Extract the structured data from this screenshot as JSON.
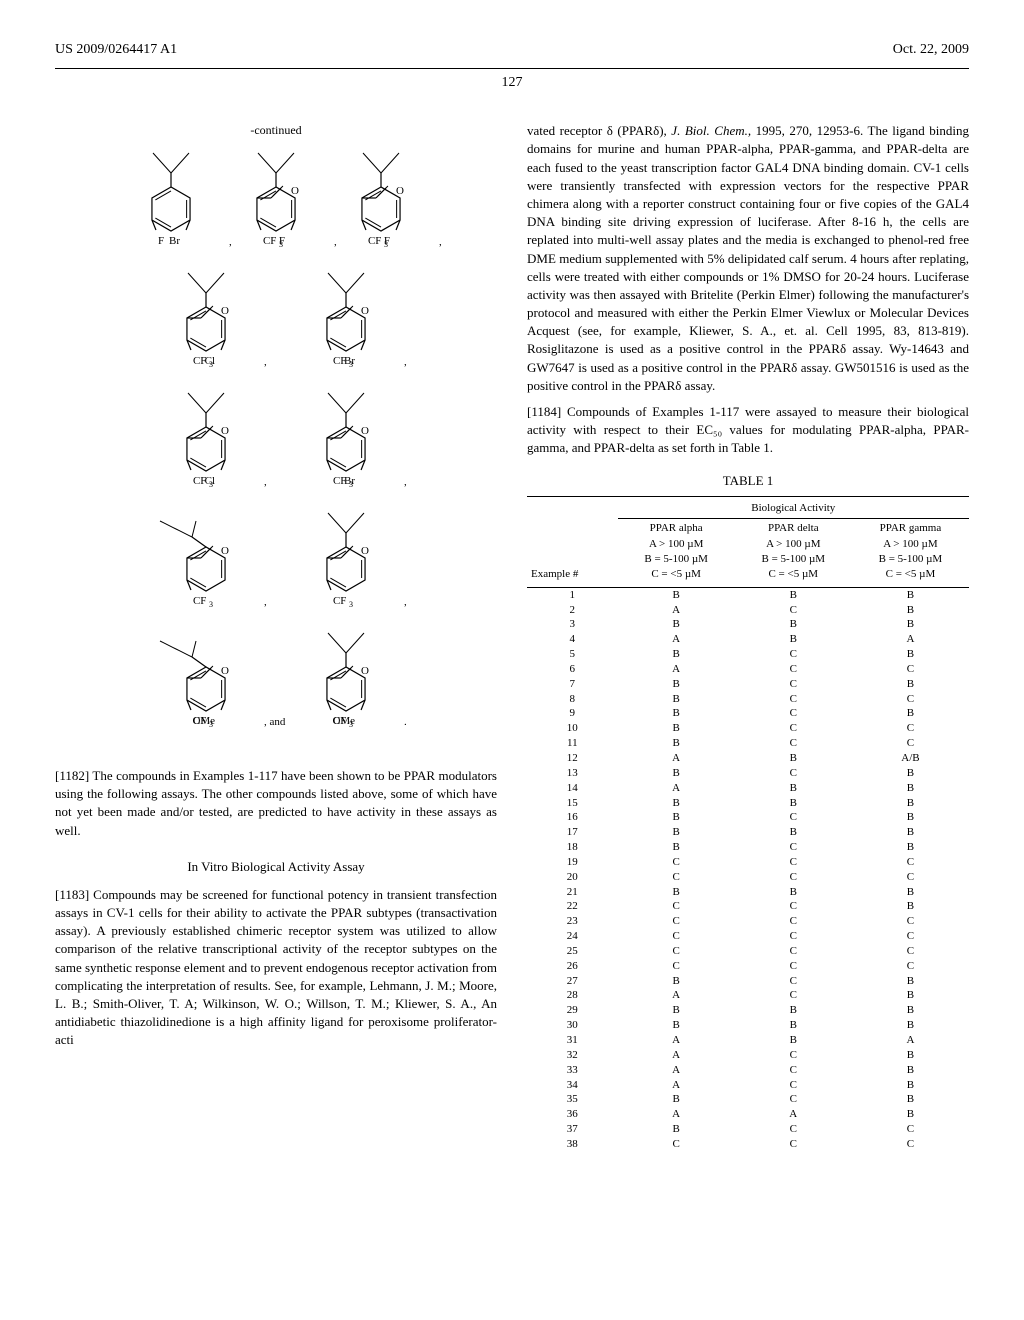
{
  "header": {
    "left": "US 2009/0264417 A1",
    "right": "Oct. 22, 2009"
  },
  "pagenum": "127",
  "continued_label": "-continued",
  "chem": {
    "structures": [
      [
        {
          "shape": "benzene-top-wavy",
          "subs": [
            {
              "pos": "bl",
              "t": "Br"
            },
            {
              "pos": "br",
              "t": "F"
            }
          ],
          "suffix": ","
        },
        {
          "shape": "benzene-top-wavy",
          "subs": [
            {
              "pos": "bl",
              "t": "F"
            },
            {
              "pos": "br",
              "t": "CF"
            },
            {
              "pos": "br2",
              "t": "3"
            },
            {
              "pos": "r",
              "t": "O"
            }
          ],
          "suffix": ","
        },
        {
          "shape": "benzene-top-wavy",
          "subs": [
            {
              "pos": "bl",
              "t": "F"
            },
            {
              "pos": "br",
              "t": "CF"
            },
            {
              "pos": "br2",
              "t": "3"
            },
            {
              "pos": "r",
              "t": "O"
            }
          ],
          "suffix": ","
        }
      ],
      [
        {
          "shape": "benzene-top-wavy",
          "subs": [
            {
              "pos": "bl",
              "t": "Cl"
            },
            {
              "pos": "br",
              "t": "CF"
            },
            {
              "pos": "br2",
              "t": "3"
            },
            {
              "pos": "r",
              "t": "O"
            }
          ],
          "suffix": ","
        },
        {
          "shape": "benzene-top-wavy",
          "subs": [
            {
              "pos": "bl",
              "t": "Br"
            },
            {
              "pos": "br",
              "t": "CF"
            },
            {
              "pos": "br2",
              "t": "3"
            },
            {
              "pos": "r",
              "t": "O"
            }
          ],
          "suffix": ","
        }
      ],
      [
        {
          "shape": "benzene-top-wavy",
          "subs": [
            {
              "pos": "bl",
              "t": "Cl"
            },
            {
              "pos": "br",
              "t": "CF"
            },
            {
              "pos": "br2",
              "t": "3"
            },
            {
              "pos": "r",
              "t": "O"
            }
          ],
          "suffix": ","
        },
        {
          "shape": "benzene-top-wavy",
          "subs": [
            {
              "pos": "bl",
              "t": "Br"
            },
            {
              "pos": "br",
              "t": "CF"
            },
            {
              "pos": "br2",
              "t": "3"
            },
            {
              "pos": "r",
              "t": "O"
            }
          ],
          "suffix": ","
        }
      ],
      [
        {
          "shape": "benzene-angled-wavy",
          "subs": [
            {
              "pos": "br",
              "t": "CF"
            },
            {
              "pos": "br2",
              "t": "3"
            },
            {
              "pos": "r",
              "t": "O"
            }
          ],
          "suffix": ","
        },
        {
          "shape": "benzene-top-wavy",
          "subs": [
            {
              "pos": "br",
              "t": "CF"
            },
            {
              "pos": "br2",
              "t": "3"
            },
            {
              "pos": "r",
              "t": "O"
            }
          ],
          "suffix": ","
        }
      ],
      [
        {
          "shape": "benzene-angled-wavy",
          "subs": [
            {
              "pos": "bl",
              "t": "OMe"
            },
            {
              "pos": "br",
              "t": "CF"
            },
            {
              "pos": "br2",
              "t": "3"
            },
            {
              "pos": "r",
              "t": "O"
            }
          ],
          "suffix": ",  and"
        },
        {
          "shape": "benzene-top-wavy",
          "subs": [
            {
              "pos": "bl",
              "t": "OMe"
            },
            {
              "pos": "br",
              "t": "CF"
            },
            {
              "pos": "br2",
              "t": "3"
            },
            {
              "pos": "r",
              "t": "O"
            }
          ],
          "suffix": "."
        }
      ]
    ],
    "hex_stroke": "#000000",
    "wavy_stroke": "#000000",
    "font_size": 11
  },
  "para1182": {
    "ref": "[1182]",
    "text": "   The compounds in Examples 1-117 have been shown to be PPAR modulators using the following assays. The other compounds listed above, some of which have not yet been made and/or tested, are predicted to have activity in these assays as well."
  },
  "heading_invitro": "In Vitro Biological Activity Assay",
  "para1183": {
    "ref": "[1183]",
    "text": "   Compounds may be screened for functional potency in transient transfection assays in CV-1 cells for their ability to activate the PPAR subtypes (transactivation assay). A previously established chimeric receptor system was utilized to allow comparison of the relative transcriptional activity of the receptor subtypes on the same synthetic response element and to prevent endogenous receptor activation from complicating the interpretation of results. See, for example, Lehmann, J. M.; Moore, L. B.; Smith-Oliver, T. A; Wilkinson, W. O.; Willson, T. M.; Kliewer, S. A., An antidiabetic thiazolidinedione is a high affinity ligand for peroxisome proliferator-acti"
  },
  "para_right_top": {
    "text": "vated receptor δ (PPARδ), J. Biol. Chem., 1995, 270, 12953-6. The ligand binding domains for murine and human PPAR-alpha, PPAR-gamma, and PPAR-delta are each fused to the yeast transcription factor GAL4 DNA binding domain. CV-1 cells were transiently transfected with expression vectors for the respective PPAR chimera along with a reporter construct containing four or five copies of the GAL4 DNA binding site driving expression of luciferase. After 8-16 h, the cells are replated into multi-well assay plates and the media is exchanged to phenol-red free DME medium supplemented with 5% delipidated calf serum. 4 hours after replating, cells were treated with either compounds or 1% DMSO for 20-24 hours. Luciferase activity was then assayed with Britelite (Perkin Elmer) following the manufacturer's protocol and measured with either the Perkin Elmer Viewlux or Molecular Devices Acquest (see, for example, Kliewer, S. A., et. al. Cell 1995, 83, 813-819). Rosiglitazone is used as a positive control in the PPARδ assay. Wy-14643 and GW7647 is used as a positive control in the PPARδ assay. GW501516 is used as the positive control in the PPARδ assay.",
    "italic_phrase": "J. Biol. Chem.,"
  },
  "para1184": {
    "ref": "[1184]",
    "text": "   Compounds of Examples 1-117 were assayed to measure their biological activity with respect to their EC₅₀ values for modulating PPAR-alpha, PPAR-gamma, and PPAR-delta as set forth in Table 1."
  },
  "table": {
    "caption": "TABLE 1",
    "spanner": "Biological Activity",
    "col_example": "Example #",
    "cols": [
      {
        "h1": "PPAR alpha",
        "h2": "A > 100 µM",
        "h3": "B = 5-100 µM",
        "h4": "C = <5 µM"
      },
      {
        "h1": "PPAR delta",
        "h2": "A > 100 µM",
        "h3": "B = 5-100 µM",
        "h4": "C = <5 µM"
      },
      {
        "h1": "PPAR gamma",
        "h2": "A > 100 µM",
        "h3": "B = 5-100 µM",
        "h4": "C = <5 µM"
      }
    ],
    "rows": [
      [
        "1",
        "B",
        "B",
        "B"
      ],
      [
        "2",
        "A",
        "C",
        "B"
      ],
      [
        "3",
        "B",
        "B",
        "B"
      ],
      [
        "4",
        "A",
        "B",
        "A"
      ],
      [
        "5",
        "B",
        "C",
        "B"
      ],
      [
        "6",
        "A",
        "C",
        "C"
      ],
      [
        "7",
        "B",
        "C",
        "B"
      ],
      [
        "8",
        "B",
        "C",
        "C"
      ],
      [
        "9",
        "B",
        "C",
        "B"
      ],
      [
        "10",
        "B",
        "C",
        "C"
      ],
      [
        "11",
        "B",
        "C",
        "C"
      ],
      [
        "12",
        "A",
        "B",
        "A/B"
      ],
      [
        "13",
        "B",
        "C",
        "B"
      ],
      [
        "14",
        "A",
        "B",
        "B"
      ],
      [
        "15",
        "B",
        "B",
        "B"
      ],
      [
        "16",
        "B",
        "C",
        "B"
      ],
      [
        "17",
        "B",
        "B",
        "B"
      ],
      [
        "18",
        "B",
        "C",
        "B"
      ],
      [
        "19",
        "C",
        "C",
        "C"
      ],
      [
        "20",
        "C",
        "C",
        "C"
      ],
      [
        "21",
        "B",
        "B",
        "B"
      ],
      [
        "22",
        "C",
        "C",
        "B"
      ],
      [
        "23",
        "C",
        "C",
        "C"
      ],
      [
        "24",
        "C",
        "C",
        "C"
      ],
      [
        "25",
        "C",
        "C",
        "C"
      ],
      [
        "26",
        "C",
        "C",
        "C"
      ],
      [
        "27",
        "B",
        "C",
        "B"
      ],
      [
        "28",
        "A",
        "C",
        "B"
      ],
      [
        "29",
        "B",
        "B",
        "B"
      ],
      [
        "30",
        "B",
        "B",
        "B"
      ],
      [
        "31",
        "A",
        "B",
        "A"
      ],
      [
        "32",
        "A",
        "C",
        "B"
      ],
      [
        "33",
        "A",
        "C",
        "B"
      ],
      [
        "34",
        "A",
        "C",
        "B"
      ],
      [
        "35",
        "B",
        "C",
        "B"
      ],
      [
        "36",
        "A",
        "A",
        "B"
      ],
      [
        "37",
        "B",
        "C",
        "C"
      ],
      [
        "38",
        "C",
        "C",
        "C"
      ]
    ]
  }
}
